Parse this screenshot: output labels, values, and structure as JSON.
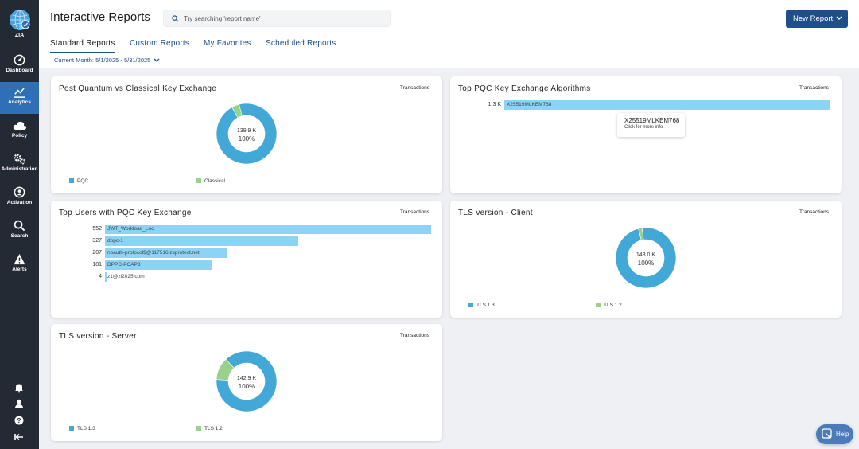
{
  "app": {
    "name": "ZIA"
  },
  "sidebar": {
    "items": [
      {
        "label": "Dashboard",
        "icon": "dashboard-icon"
      },
      {
        "label": "Analytics",
        "icon": "analytics-icon",
        "active": true
      },
      {
        "label": "Policy",
        "icon": "cloud-icon"
      },
      {
        "label": "Administration",
        "icon": "gears-icon"
      },
      {
        "label": "Activation",
        "icon": "activation-icon"
      },
      {
        "label": "Search",
        "icon": "search-icon"
      },
      {
        "label": "Alerts",
        "icon": "alert-icon"
      }
    ]
  },
  "header": {
    "title": "Interactive Reports",
    "search_placeholder": "Try searching 'report name'",
    "new_report_label": "New Report"
  },
  "tabs": [
    {
      "label": "Standard Reports",
      "active": true
    },
    {
      "label": "Custom Reports"
    },
    {
      "label": "My Favorites"
    },
    {
      "label": "Scheduled Reports"
    }
  ],
  "date_filter": "Current Month: 5/1/2025 - 5/31/2025",
  "colors": {
    "primary_series": "#41a8d8",
    "secondary_series": "#99d08a",
    "bar": "#8dd3f5",
    "accent": "#1f4e8c"
  },
  "cards": {
    "pq_vs_classical": {
      "title": "Post Quantum vs Classical Key Exchange",
      "metric": "Transactions",
      "center_value": "139.9 K",
      "center_pct": "100%",
      "legend": [
        "PQC",
        "Classical"
      ]
    },
    "top_pqc_algorithms": {
      "title": "Top PQC Key Exchange Algorithms",
      "metric": "Transactions",
      "tooltip_title": "X25519MLKEM768",
      "tooltip_sub": "Click for more info"
    },
    "top_users": {
      "title": "Top Users with PQC Key Exchange",
      "metric": "Transactions"
    },
    "tls_client": {
      "title": "TLS version - Client",
      "metric": "Transactions",
      "center_value": "143.0 K",
      "center_pct": "100%",
      "legend": [
        "TLS 1.3",
        "TLS 1.2"
      ]
    },
    "tls_server": {
      "title": "TLS version - Server",
      "metric": "Transactions",
      "center_value": "142.9 K",
      "center_pct": "100%",
      "legend": [
        "TLS 1.3",
        "TLS 1.2"
      ]
    }
  },
  "chart_data": [
    {
      "type": "pie",
      "labels": [
        "PQC",
        "Classical"
      ],
      "values": [
        96,
        4
      ]
    },
    {
      "type": "bar",
      "orientation": "horizontal",
      "categories": [
        "X25519MLKEM768"
      ],
      "values": [
        1300
      ],
      "value_labels": [
        "1.3 K"
      ]
    },
    {
      "type": "bar",
      "orientation": "horizontal",
      "categories": [
        "JWT_Workload_Loc",
        "dppc-1",
        "noauth-protocol$@117516.zsprotect.net",
        "DPPC-PCAP3",
        "z1@zi2025.com"
      ],
      "values": [
        552,
        327,
        207,
        181,
        4
      ]
    },
    {
      "type": "pie",
      "labels": [
        "TLS 1.3",
        "TLS 1.2"
      ],
      "values": [
        98,
        2
      ]
    },
    {
      "type": "pie",
      "labels": [
        "TLS 1.3",
        "TLS 1.2"
      ],
      "values": [
        88,
        12
      ]
    }
  ],
  "help": {
    "label": "Help"
  }
}
